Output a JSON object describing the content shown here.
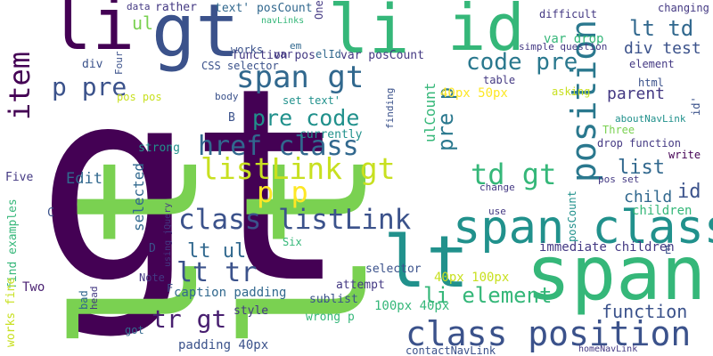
{
  "wordcloud": {
    "words": [
      {
        "text": "gt",
        "color": "#440154",
        "size": "large"
      },
      {
        "text": "lt",
        "color": "#7ad151",
        "size": "large"
      },
      {
        "text": "li",
        "color": "#440154"
      },
      {
        "text": "gt",
        "color": "#3b528b"
      },
      {
        "text": "li",
        "color": "#35b779"
      },
      {
        "text": "id",
        "color": "#35b779"
      },
      {
        "text": "lt",
        "color": "#21918c"
      },
      {
        "text": "span",
        "color": "#35b779"
      },
      {
        "text": "span class",
        "color": "#21918c"
      },
      {
        "text": "class position",
        "color": "#3b528b"
      },
      {
        "text": "lt",
        "color": "#7ad151"
      },
      {
        "text": "lt",
        "color": "#7ad151"
      },
      {
        "text": "href class",
        "color": "#31688e"
      },
      {
        "text": "class listLink",
        "color": "#3b528b"
      },
      {
        "text": "listLink gt",
        "color": "#c8e020"
      },
      {
        "text": "span gt",
        "color": "#31688e"
      },
      {
        "text": "code pre",
        "color": "#2a788e"
      },
      {
        "text": "pre code",
        "color": "#21918c"
      },
      {
        "text": "position gt",
        "color": "#2a788e"
      },
      {
        "text": "td gt",
        "color": "#35b779"
      },
      {
        "text": "item",
        "color": "#440154"
      },
      {
        "text": "p pre",
        "color": "#3b528b"
      },
      {
        "text": "pre p",
        "color": "#2a788e"
      },
      {
        "text": "p p",
        "color": "#fde725"
      },
      {
        "text": "lt tr",
        "color": "#3b528b"
      },
      {
        "text": "tr gt",
        "color": "#481f70"
      },
      {
        "text": "lt ul",
        "color": "#31688e"
      },
      {
        "text": "lt td",
        "color": "#31688e"
      },
      {
        "text": "div test",
        "color": "#3b528b"
      },
      {
        "text": "list",
        "color": "#31688e"
      },
      {
        "text": "id",
        "color": "#3b528b"
      },
      {
        "text": "li element",
        "color": "#35b779"
      },
      {
        "text": "function",
        "color": "#3b528b"
      },
      {
        "text": "ulCount",
        "color": "#35b779"
      },
      {
        "text": "Edit",
        "color": "#31688e"
      },
      {
        "text": "Five",
        "color": "#443983"
      },
      {
        "text": "Two",
        "color": "#481f70"
      },
      {
        "text": "selected",
        "color": "#31688e"
      },
      {
        "text": "parent",
        "color": "#443983"
      },
      {
        "text": "child",
        "color": "#31688e"
      },
      {
        "text": "children",
        "color": "#35b779"
      },
      {
        "text": "immediate children",
        "color": "#443983"
      },
      {
        "text": "var drop",
        "color": "#35b779"
      },
      {
        "text": "difficult",
        "color": "#443983"
      },
      {
        "text": "text' posCount",
        "color": "#31688e"
      },
      {
        "text": "function pos",
        "color": "#443983"
      },
      {
        "text": "var posCount",
        "color": "#443983"
      },
      {
        "text": "posCount",
        "color": "#21918c"
      },
      {
        "text": "40px 50px",
        "color": "#fde725"
      },
      {
        "text": "40px 100px",
        "color": "#c8e020"
      },
      {
        "text": "100px 40px",
        "color": "#35b779"
      },
      {
        "text": "padding 40px",
        "color": "#3b528b"
      },
      {
        "text": "caption padding",
        "color": "#31688e"
      },
      {
        "text": "wrong p",
        "color": "#35b779"
      },
      {
        "text": "style",
        "color": "#443983"
      },
      {
        "text": "sublist",
        "color": "#3b528b"
      },
      {
        "text": "selector",
        "color": "#3b528b"
      },
      {
        "text": "attempt",
        "color": "#443983"
      },
      {
        "text": "Six",
        "color": "#35b779"
      },
      {
        "text": "Note",
        "color": "#443983"
      },
      {
        "text": "strong",
        "color": "#21918c"
      },
      {
        "text": "currently",
        "color": "#21918c"
      },
      {
        "text": "set text'",
        "color": "#21918c"
      },
      {
        "text": "CSS selector",
        "color": "#3b528b"
      },
      {
        "text": "pos pos",
        "color": "#c8e020"
      },
      {
        "text": "div",
        "color": "#3b528b"
      },
      {
        "text": "ul",
        "color": "#7ad151"
      },
      {
        "text": "data",
        "color": "#443983"
      },
      {
        "text": "rather",
        "color": "#443983"
      },
      {
        "text": "One",
        "color": "#443983"
      },
      {
        "text": "navLinks",
        "color": "#35b779"
      },
      {
        "text": "works",
        "color": "#3b528b"
      },
      {
        "text": "var",
        "color": "#443983"
      },
      {
        "text": "em",
        "color": "#31688e"
      },
      {
        "text": "elId",
        "color": "#31688e"
      },
      {
        "text": "body",
        "color": "#3b528b"
      },
      {
        "text": "B",
        "color": "#3b528b"
      },
      {
        "text": "table",
        "color": "#443983"
      },
      {
        "text": "html",
        "color": "#3b528b"
      },
      {
        "text": "element",
        "color": "#443983"
      },
      {
        "text": "changing",
        "color": "#443983"
      },
      {
        "text": "simple question",
        "color": "#443983"
      },
      {
        "text": "asking",
        "color": "#c8e020"
      },
      {
        "text": "Three",
        "color": "#7ad151"
      },
      {
        "text": "aboutNavLink",
        "color": "#21918c"
      },
      {
        "text": "drop function",
        "color": "#443983"
      },
      {
        "text": "write",
        "color": "#440154"
      },
      {
        "text": "pos set",
        "color": "#443983"
      },
      {
        "text": "change",
        "color": "#443983"
      },
      {
        "text": "use",
        "color": "#443983"
      },
      {
        "text": "finding",
        "color": "#3b528b"
      },
      {
        "text": "find examples",
        "color": "#35b779"
      },
      {
        "text": "works fine",
        "color": "#c8e020"
      },
      {
        "text": "using jQuery",
        "color": "#443983"
      },
      {
        "text": "head",
        "color": "#443983"
      },
      {
        "text": "bad",
        "color": "#31688e"
      },
      {
        "text": "got",
        "color": "#31688e"
      },
      {
        "text": "contactNavLink",
        "color": "#3b528b"
      },
      {
        "text": "homeNavLink",
        "color": "#443983"
      },
      {
        "text": "D",
        "color": "#3b528b"
      },
      {
        "text": "C",
        "color": "#3b528b"
      },
      {
        "text": "E",
        "color": "#3b528b"
      },
      {
        "text": "F",
        "color": "#3b528b"
      },
      {
        "text": "Four",
        "color": "#3b528b"
      },
      {
        "text": "id'",
        "color": "#3b528b"
      }
    ]
  }
}
